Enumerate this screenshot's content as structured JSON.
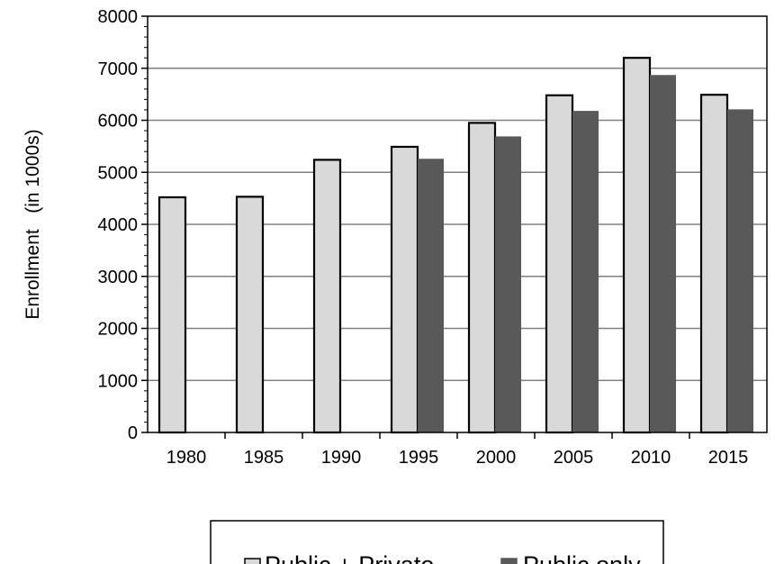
{
  "chart_data": {
    "type": "bar",
    "title": "",
    "xlabel": "",
    "ylabel": "Enrollment   (in 1000s)",
    "categories": [
      "1980",
      "1985",
      "1990",
      "1995",
      "2000",
      "2005",
      "2010",
      "2015"
    ],
    "series": [
      {
        "name": "Public + Private",
        "values": [
          4520,
          4530,
          5240,
          5490,
          5950,
          6480,
          7200,
          6490
        ],
        "color": "#d9d9d9"
      },
      {
        "name": "Public only",
        "values": [
          null,
          null,
          null,
          5260,
          5690,
          6180,
          6870,
          6210
        ],
        "color": "#595959"
      }
    ],
    "yticks": [
      "0",
      "1000",
      "2000",
      "3000",
      "4000",
      "5000",
      "6000",
      "7000",
      "8000"
    ],
    "ylim": [
      0,
      8000
    ],
    "grid": true,
    "legend": "bottom"
  }
}
